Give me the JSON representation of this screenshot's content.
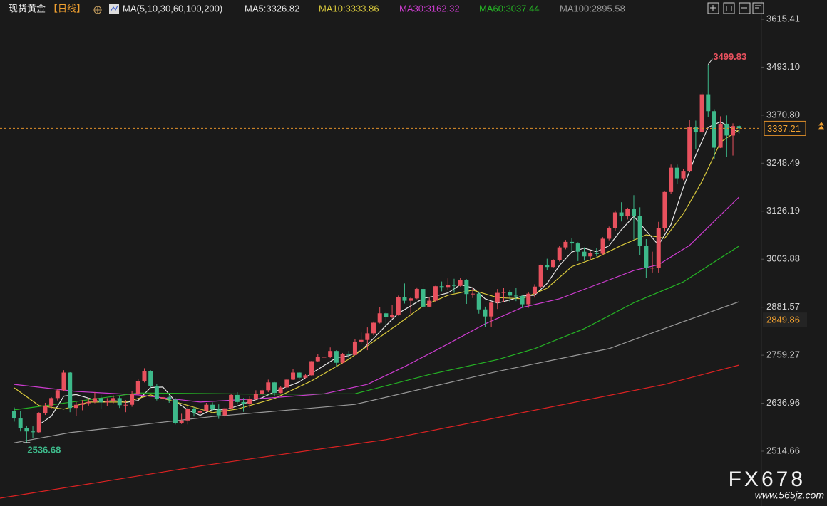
{
  "chart_data": {
    "type": "candlestick",
    "title": "现货黄金",
    "period": "【日线】",
    "indicator": "MA(5,10,30,60,100,200)",
    "up_color": "#e8515e",
    "down_color": "#3db98a",
    "xlim": [
      -2.3,
      120.6
    ],
    "ylim": [
      2375,
      3664.37
    ],
    "yticks": [
      3615.41,
      {
        "value": 3493.1,
        "label": "3493.10"
      },
      {
        "value": 3370.8,
        "label": "3370.80"
      },
      3248.49,
      3126.19,
      3003.88,
      2881.57,
      2759.27,
      2636.96,
      2514.66
    ],
    "grid": false,
    "reference_price": 2849.86,
    "open": [
      2618,
      2598,
      2573,
      2565,
      2563,
      2611,
      2631,
      2650,
      2670,
      2715,
      2625,
      2633,
      2637,
      2640,
      2650,
      2639,
      2643,
      2650,
      2632,
      2633,
      2660,
      2694,
      2718,
      2680,
      2648,
      2652,
      2646,
      2586,
      2593,
      2622,
      2613,
      2617,
      2633,
      2621,
      2606,
      2624,
      2658,
      2640,
      2635,
      2648,
      2661,
      2670,
      2690,
      2663,
      2677,
      2697,
      2715,
      2702,
      2708,
      2744,
      2755,
      2755,
      2770,
      2740,
      2763,
      2760,
      2794,
      2798,
      2815,
      2842,
      2866,
      2856,
      2861,
      2907,
      2898,
      2904,
      2928,
      2883,
      2898,
      2935,
      2933,
      2939,
      2936,
      2951,
      2915,
      2916,
      2876,
      2858,
      2893,
      2918,
      2920,
      2911,
      2910,
      2889,
      2916,
      2934,
      2988,
      2984,
      3001,
      3034,
      3048,
      3044,
      3023,
      3011,
      3019,
      3018,
      3056,
      3084,
      3123,
      3113,
      3133,
      3114,
      3037,
      2982,
      2982,
      3083,
      3175,
      3237,
      3210,
      3229,
      3341,
      3327,
      3424,
      3381,
      3288,
      3349,
      3319,
      3343
    ],
    "high": [
      2626,
      2618,
      2580,
      2578,
      2614,
      2638,
      2652,
      2674,
      2721,
      2716,
      2640,
      2645,
      2650,
      2665,
      2658,
      2650,
      2657,
      2656,
      2645,
      2667,
      2698,
      2726,
      2721,
      2685,
      2660,
      2657,
      2650,
      2610,
      2628,
      2627,
      2621,
      2638,
      2639,
      2634,
      2628,
      2661,
      2665,
      2650,
      2654,
      2670,
      2675,
      2697,
      2691,
      2680,
      2698,
      2724,
      2716,
      2711,
      2745,
      2763,
      2760,
      2779,
      2772,
      2765,
      2770,
      2800,
      2817,
      2830,
      2845,
      2882,
      2870,
      2887,
      2911,
      2942,
      2908,
      2932,
      2942,
      2906,
      2936,
      2947,
      2955,
      2954,
      2956,
      2953,
      2930,
      2920,
      2883,
      2896,
      2928,
      2930,
      2926,
      2930,
      2913,
      2919,
      2940,
      2990,
      3005,
      3004,
      3038,
      3053,
      3057,
      3047,
      3034,
      3024,
      3033,
      3060,
      3087,
      3128,
      3149,
      3135,
      3167,
      3136,
      3055,
      3023,
      3099,
      3176,
      3245,
      3245,
      3234,
      3358,
      3357,
      3430,
      3499.83,
      3386,
      3368,
      3370,
      3350,
      3346
    ],
    "low": [
      2590,
      2565,
      2536.68,
      2548,
      2562,
      2607,
      2624,
      2644,
      2668,
      2614,
      2605,
      2619,
      2631,
      2637,
      2622,
      2630,
      2637,
      2625,
      2614,
      2628,
      2657,
      2690,
      2676,
      2644,
      2642,
      2638,
      2583,
      2584,
      2583,
      2603,
      2609,
      2615,
      2617,
      2597,
      2598,
      2624,
      2636,
      2615,
      2626,
      2645,
      2655,
      2665,
      2656,
      2662,
      2671,
      2696,
      2697,
      2700,
      2705,
      2742,
      2742,
      2752,
      2731,
      2738,
      2750,
      2759,
      2787,
      2772,
      2810,
      2840,
      2834,
      2853,
      2860,
      2891,
      2864,
      2902,
      2877,
      2882,
      2895,
      2922,
      2925,
      2918,
      2934,
      2890,
      2905,
      2865,
      2832,
      2832,
      2877,
      2895,
      2894,
      2897,
      2880,
      2880,
      2906,
      2932,
      2976,
      2982,
      2998,
      3029,
      3024,
      2999,
      3000,
      3004,
      3011,
      3014,
      3052,
      3075,
      3100,
      3105,
      3054,
      3015,
      2957,
      2970,
      2970,
      3074,
      3170,
      3195,
      3205,
      3228,
      3284,
      3322,
      3367,
      3260,
      3287,
      3265,
      3268,
      3324
    ],
    "close": [
      2598,
      2573,
      2565,
      2563,
      2611,
      2631,
      2650,
      2670,
      2715,
      2625,
      2633,
      2637,
      2640,
      2650,
      2639,
      2643,
      2650,
      2632,
      2633,
      2660,
      2694,
      2718,
      2680,
      2648,
      2652,
      2646,
      2586,
      2593,
      2622,
      2613,
      2617,
      2633,
      2621,
      2606,
      2624,
      2658,
      2640,
      2635,
      2648,
      2661,
      2670,
      2690,
      2663,
      2677,
      2697,
      2715,
      2702,
      2708,
      2744,
      2755,
      2755,
      2770,
      2740,
      2763,
      2760,
      2794,
      2798,
      2815,
      2842,
      2866,
      2856,
      2861,
      2907,
      2898,
      2904,
      2928,
      2883,
      2898,
      2935,
      2933,
      2939,
      2936,
      2951,
      2915,
      2916,
      2876,
      2858,
      2893,
      2918,
      2920,
      2911,
      2910,
      2889,
      2916,
      2934,
      2988,
      2984,
      3001,
      3034,
      3048,
      3044,
      3023,
      3011,
      3019,
      3018,
      3056,
      3084,
      3123,
      3113,
      3133,
      3114,
      3037,
      2982,
      2982,
      3083,
      3175,
      3237,
      3210,
      3229,
      3341,
      3327,
      3424,
      3381,
      3288,
      3349,
      3319,
      3343,
      3337.21
    ],
    "ma_lines": [
      {
        "name": "MA5:3326.82",
        "color": "#e6e6e6",
        "x": [
          4,
          6,
          8,
          10,
          12,
          14,
          16,
          18,
          20,
          22,
          24,
          26,
          28,
          30,
          32,
          34,
          36,
          38,
          40,
          42,
          44,
          46,
          48,
          50,
          52,
          54,
          56,
          58,
          60,
          62,
          64,
          66,
          68,
          70,
          72,
          74,
          76,
          78,
          80,
          82,
          84,
          86,
          88,
          90,
          92,
          94,
          96,
          98,
          100,
          102,
          104,
          106,
          108,
          110,
          112,
          114,
          116,
          117
        ],
        "values": [
          2582,
          2604,
          2655,
          2659,
          2650,
          2640,
          2644,
          2639,
          2644,
          2677,
          2678,
          2642,
          2620,
          2606,
          2621,
          2620,
          2630,
          2641,
          2651,
          2666,
          2679,
          2691,
          2713,
          2733,
          2753,
          2758,
          2771,
          2802,
          2835,
          2866,
          2885,
          2904,
          2910,
          2918,
          2939,
          2931,
          2903,
          2892,
          2900,
          2910,
          2912,
          2942,
          2988,
          3022,
          3032,
          3023,
          3038,
          3079,
          3113,
          3076,
          3040,
          3092,
          3187,
          3269,
          3340,
          3354,
          3336,
          3326.82
        ]
      },
      {
        "name": "MA10:3333.86",
        "color": "#d9c93c",
        "x": [
          0,
          4,
          8,
          12,
          18,
          22,
          27,
          32,
          36,
          42,
          48,
          54,
          58,
          62,
          66,
          70,
          74,
          78,
          82,
          86,
          90,
          94,
          98,
          102,
          105,
          108,
          111,
          114,
          117
        ],
        "values": [
          2676,
          2631,
          2622,
          2640,
          2640,
          2658,
          2636,
          2613,
          2622,
          2649,
          2694,
          2749,
          2794,
          2839,
          2885,
          2912,
          2925,
          2906,
          2903,
          2930,
          2985,
          3008,
          3039,
          3066,
          3057,
          3120,
          3202,
          3302,
          3333.86
        ]
      },
      {
        "name": "MA30:3162.32",
        "color": "#cc3ccf",
        "x": [
          0,
          10,
          20,
          30,
          40,
          50,
          57,
          63,
          70,
          76,
          82,
          88,
          94,
          100,
          104,
          109,
          117
        ],
        "values": [
          2685,
          2667,
          2658,
          2640,
          2649,
          2661,
          2685,
          2730,
          2788,
          2839,
          2881,
          2903,
          2939,
          2975,
          2990,
          3039,
          3162.32
        ]
      },
      {
        "name": "MA60:3037.44",
        "color": "#25b325",
        "x": [
          0,
          20,
          40,
          55,
          67,
          78,
          84,
          92,
          100,
          108,
          117
        ],
        "values": [
          2620,
          2663,
          2660,
          2661,
          2710,
          2748,
          2776,
          2827,
          2893,
          2946,
          3037.44
        ]
      },
      {
        "name": "MA100:2895.58",
        "color": "#9a9a9a",
        "x": [
          0,
          9,
          32,
          55,
          78,
          96,
          107,
          117
        ],
        "values": [
          2536,
          2562,
          2603,
          2634,
          2718,
          2776,
          2839,
          2895.58
        ]
      },
      {
        "color": "#dd2222",
        "x": [
          -2.3,
          30,
          60,
          90,
          105,
          117
        ],
        "values": [
          2395,
          2477,
          2544,
          2638,
          2685,
          2734
        ]
      }
    ],
    "watermark": {
      "logo": "FX678",
      "url": "www.565jz.com"
    }
  }
}
